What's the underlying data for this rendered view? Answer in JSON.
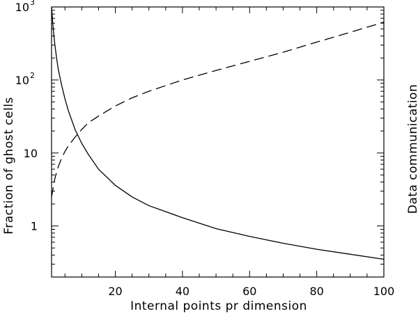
{
  "chart_data": {
    "type": "line",
    "title": "",
    "xlabel": "Internal points pr dimension",
    "ylabel": "Fraction of ghost cells",
    "ylabel_right": "Data communication",
    "xlim": [
      1,
      100
    ],
    "ylim": [
      0.2,
      1000
    ],
    "yscale": "log",
    "grid": false,
    "legend": "none",
    "x_ticks": [
      20,
      40,
      60,
      80,
      100
    ],
    "y_ticks": [
      {
        "value": 1,
        "label": "1"
      },
      {
        "value": 10,
        "label": "10"
      },
      {
        "value": 100,
        "base": "10",
        "exp": "2"
      },
      {
        "value": 1000,
        "base": "10",
        "exp": "3"
      }
    ],
    "series": [
      {
        "style": "solid",
        "x": [
          1,
          1.5,
          2,
          2.5,
          3,
          4,
          5,
          6,
          8,
          10,
          12,
          15,
          20,
          25,
          30,
          40,
          50,
          60,
          70,
          80,
          90,
          100
        ],
        "y": [
          1000,
          500,
          300,
          200,
          140,
          85,
          55,
          38,
          21,
          13.5,
          9.5,
          6,
          3.6,
          2.5,
          1.9,
          1.3,
          0.92,
          0.72,
          0.58,
          0.48,
          0.41,
          0.35
        ]
      },
      {
        "style": "dashed",
        "x": [
          1,
          2,
          3,
          4,
          5,
          6,
          8,
          10,
          12,
          15,
          20,
          25,
          30,
          40,
          50,
          60,
          70,
          80,
          90,
          100
        ],
        "y": [
          2.5,
          4.5,
          6.5,
          8.5,
          10.5,
          12.5,
          16.5,
          21,
          26,
          32,
          44,
          57,
          70,
          100,
          135,
          180,
          240,
          330,
          450,
          620
        ]
      }
    ]
  }
}
